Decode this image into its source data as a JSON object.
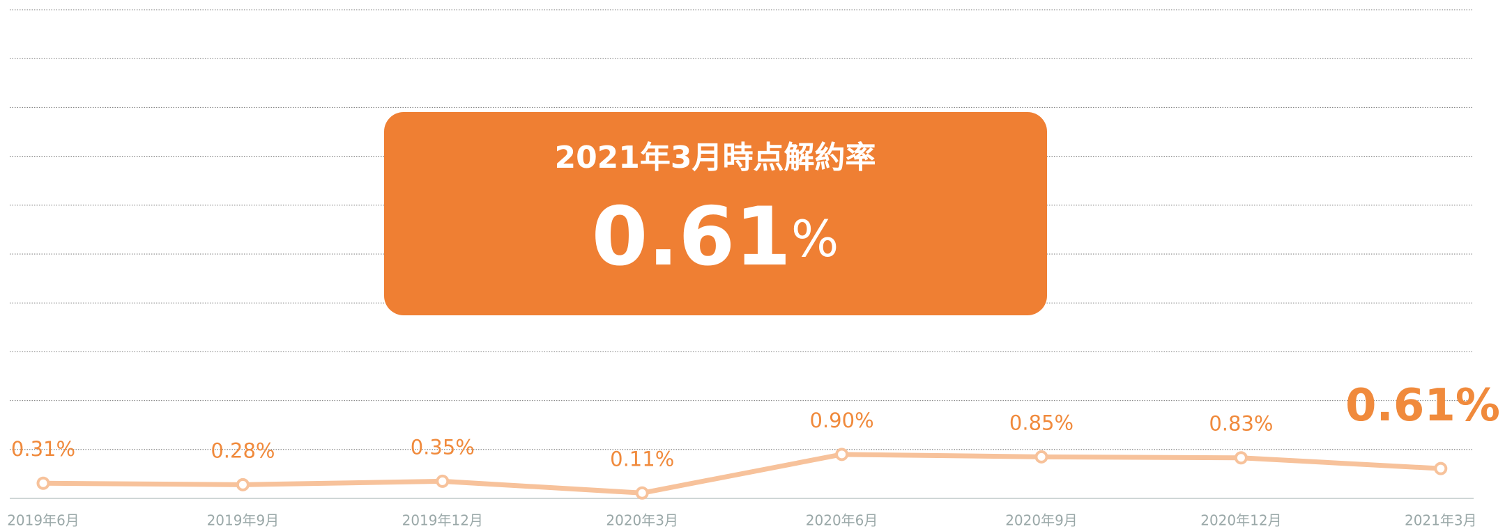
{
  "chart_data": {
    "type": "line",
    "callout": {
      "title": "2021年3月時点解約率",
      "number": "0.61",
      "unit": "%"
    },
    "categories": [
      "2019年6月",
      "2019年9月",
      "2019年12月",
      "2020年3月",
      "2020年6月",
      "2020年9月",
      "2020年12月",
      "2021年3月"
    ],
    "series": [
      {
        "color": "#f7c29b",
        "label_color": "#f08a3c",
        "values": [
          0.31,
          0.28,
          0.35,
          0.11,
          0.9,
          0.85,
          0.83,
          0.61
        ],
        "value_labels": [
          "0.31%",
          "0.28%",
          "0.35%",
          "0.11%",
          "0.90%",
          "0.85%",
          "0.83%",
          "0.61%"
        ]
      }
    ],
    "ylim": [
      0,
      10
    ],
    "yticks": [
      0,
      1,
      2,
      3,
      4,
      5,
      6,
      7,
      8,
      9,
      10
    ],
    "grid": true,
    "callout_color": "#ef7f33"
  }
}
